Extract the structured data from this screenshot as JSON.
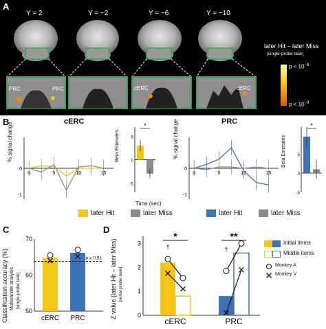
{
  "panel_letters": [
    "A",
    "B",
    "C",
    "D"
  ],
  "panel_a": {
    "slice_labels": [
      "Y = 2",
      "Y = −2",
      "Y = −6",
      "Y = −10"
    ],
    "inset_labels": [
      "PRC",
      "PRC",
      "cERC",
      "cERC"
    ],
    "contrast_title": "later Hit – later Miss",
    "contrast_subtitle": "[single-probe task]",
    "colorbar_top": "p < 10",
    "colorbar_top_exp": "−6",
    "colorbar_bottom": "p < 10",
    "colorbar_bottom_exp": "−3"
  },
  "panel_b": {
    "left_title": "cERC",
    "right_title": "PRC",
    "ylabel": "% signal change",
    "xlabel": "Time (sec)",
    "beta_ylabel": "Beta Estimates",
    "legend_hit": "later Hit",
    "legend_miss": "later Miss",
    "sig_marker": "*",
    "colors": {
      "hit_cerc": "#f5c518",
      "hit_prc": "#3d72b4",
      "miss": "#8a8a8a"
    }
  },
  "panel_c": {
    "ylabel": "Classification accuracy (%)",
    "ylabel_sub1": "Multivariate analysis",
    "ylabel_sub2": "[single-probe task]",
    "threshold_label": "p = 0.01",
    "ticks": [
      "50",
      "60",
      "70"
    ]
  },
  "panel_d": {
    "ylabel": "Z value (later Hit – later Miss)",
    "ylabel_sub": "[serial probe task]",
    "ticks": [
      "0",
      "1",
      "2",
      "3"
    ],
    "sig_left": "*",
    "sig_right": "**",
    "dagger": "†",
    "legend_initial": "Initial items",
    "legend_middle": "Middle items",
    "legend_monkey_a": "Monkey A",
    "legend_monkey_v": "Monkey V"
  },
  "chart_data": [
    {
      "type": "line",
      "panel": "B-cERC",
      "x": [
        0,
        2.5,
        5,
        7.5,
        10,
        12.5,
        15
      ],
      "xticks": [
        "0",
        "5",
        "10",
        "15"
      ],
      "yticks": [
        "0",
        "-1"
      ],
      "xlabel": "Time (sec)",
      "ylabel": "% signal change",
      "series": [
        {
          "name": "later Hit",
          "values": [
            0.0,
            0.1,
            0.05,
            -0.3,
            0.0,
            0.0,
            0.0
          ]
        },
        {
          "name": "later Miss",
          "values": [
            0.0,
            -0.15,
            0.15,
            -0.85,
            0.05,
            0.1,
            0.0
          ]
        }
      ]
    },
    {
      "type": "bar",
      "panel": "B-cERC-beta",
      "ylabel": "Beta Estimates",
      "yticks": [
        "5",
        "0",
        "-5"
      ],
      "categories": [
        "later Hit",
        "later Miss"
      ],
      "values": [
        3.0,
        -3.0
      ],
      "errors": [
        1.2,
        1.0
      ],
      "ylim": [
        -7,
        7
      ]
    },
    {
      "type": "line",
      "panel": "B-PRC",
      "x": [
        0,
        2.5,
        5,
        7.5,
        10,
        12.5,
        15
      ],
      "xticks": [
        "0",
        "5",
        "10",
        "15"
      ],
      "yticks": [
        "0",
        "-1"
      ],
      "xlabel": "Time (sec)",
      "ylabel": "% signal change",
      "series": [
        {
          "name": "later Hit",
          "values": [
            0.0,
            0.15,
            0.35,
            0.8,
            -0.1,
            -0.55,
            -0.65
          ]
        },
        {
          "name": "later Miss",
          "values": [
            0.0,
            -0.05,
            0.05,
            0.05,
            0.0,
            0.05,
            0.0
          ]
        }
      ]
    },
    {
      "type": "bar",
      "panel": "B-PRC-beta",
      "ylabel": "Beta Estimates",
      "yticks": [
        "5",
        "0",
        "-5"
      ],
      "categories": [
        "later Hit",
        "later Miss"
      ],
      "values": [
        9.5,
        1.0
      ],
      "errors": [
        2.5,
        2.5
      ],
      "ylim": [
        -5,
        12
      ]
    },
    {
      "type": "bar",
      "panel": "C",
      "categories": [
        "cERC",
        "PRC"
      ],
      "values": [
        64.8,
        66.2
      ],
      "monkey_a": [
        65.5,
        67.0
      ],
      "monkey_v": [
        64.0,
        65.2
      ],
      "threshold": 63.8,
      "ylim": [
        50,
        70
      ],
      "ylabel": "Classification accuracy (%)"
    },
    {
      "type": "bar",
      "panel": "D",
      "categories": [
        "cERC",
        "PRC"
      ],
      "series": [
        {
          "name": "Initial items",
          "values": [
            2.2,
            0.8
          ]
        },
        {
          "name": "Middle items",
          "values": [
            0.8,
            2.6
          ]
        }
      ],
      "monkey_a": {
        "initial": [
          2.35,
          1.85
        ],
        "middle": [
          1.55,
          3.0
        ]
      },
      "monkey_v": {
        "initial": [
          1.75,
          0.1
        ],
        "middle": [
          1.1,
          1.9
        ]
      },
      "ylim": [
        0,
        3.3
      ],
      "ylabel": "Z value (later Hit – later Miss)"
    }
  ]
}
